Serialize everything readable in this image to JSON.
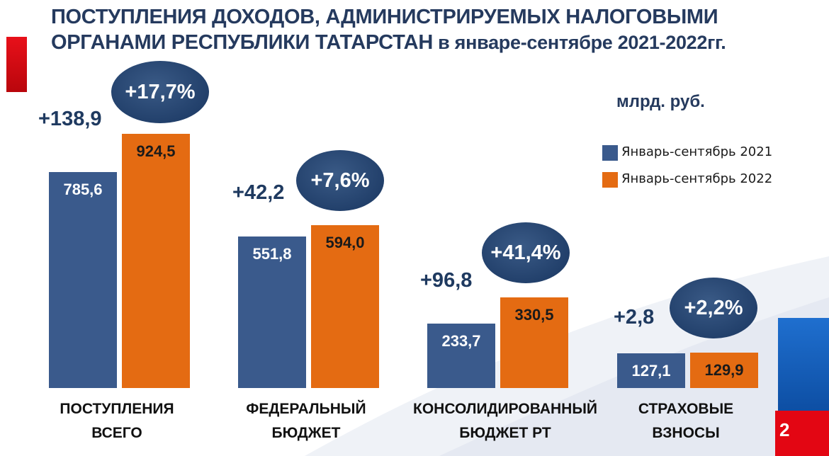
{
  "title_line1": "ПОСТУПЛЕНИЯ  ДОХОДОВ, АДМИНИСТРИРУЕМЫХ  НАЛОГОВЫМИ",
  "title_line2": "ОРГАНАМИ РЕСПУБЛИКИ ТАТАРСТАН",
  "title_line2_tail": " в январе-сентябре 2021-2022гг.",
  "units": "млрд. руб.",
  "page_number": "2",
  "colors": {
    "series_2021": "#3a5a8c",
    "series_2022": "#e46b12",
    "accent_dark": "#22406b",
    "red": "#e30613",
    "blue": "#1565c0"
  },
  "chart_data": {
    "type": "bar",
    "title": "ПОСТУПЛЕНИЯ  ДОХОДОВ, АДМИНИСТРИРУЕМЫХ  НАЛОГОВЫМИ ОРГАНАМИ РЕСПУБЛИКИ ТАТАРСТАН в январе-сентябре 2021-2022гг.",
    "ylabel": "млрд. руб.",
    "ylim": [
      0,
      1000
    ],
    "categories": [
      {
        "line1": "ПОСТУПЛЕНИЯ",
        "line2": "ВСЕГО"
      },
      {
        "line1": "ФЕДЕРАЛЬНЫЙ",
        "line2": "БЮДЖЕТ"
      },
      {
        "line1": "КОНСОЛИДИРОВАННЫЙ",
        "line2": "БЮДЖЕТ РТ"
      },
      {
        "line1": "СТРАХОВЫЕ",
        "line2": "ВЗНОСЫ"
      }
    ],
    "series": [
      {
        "name": "Январь-сентябрь 2021",
        "values": [
          785.6,
          551.8,
          233.7,
          127.1
        ],
        "labels": [
          "785,6",
          "551,8",
          "233,7",
          "127,1"
        ]
      },
      {
        "name": "Январь-сентябрь 2022",
        "values": [
          924.5,
          594.0,
          330.5,
          129.9
        ],
        "labels": [
          "924,5",
          "594,0",
          "330,5",
          "129,9"
        ]
      }
    ],
    "abs_change": [
      "+138,9",
      "+42,2",
      "+96,8",
      "+2,8"
    ],
    "pct_change": [
      "+17,7%",
      "+7,6%",
      "+41,4%",
      "+2,2%"
    ],
    "legend_position": "right"
  }
}
